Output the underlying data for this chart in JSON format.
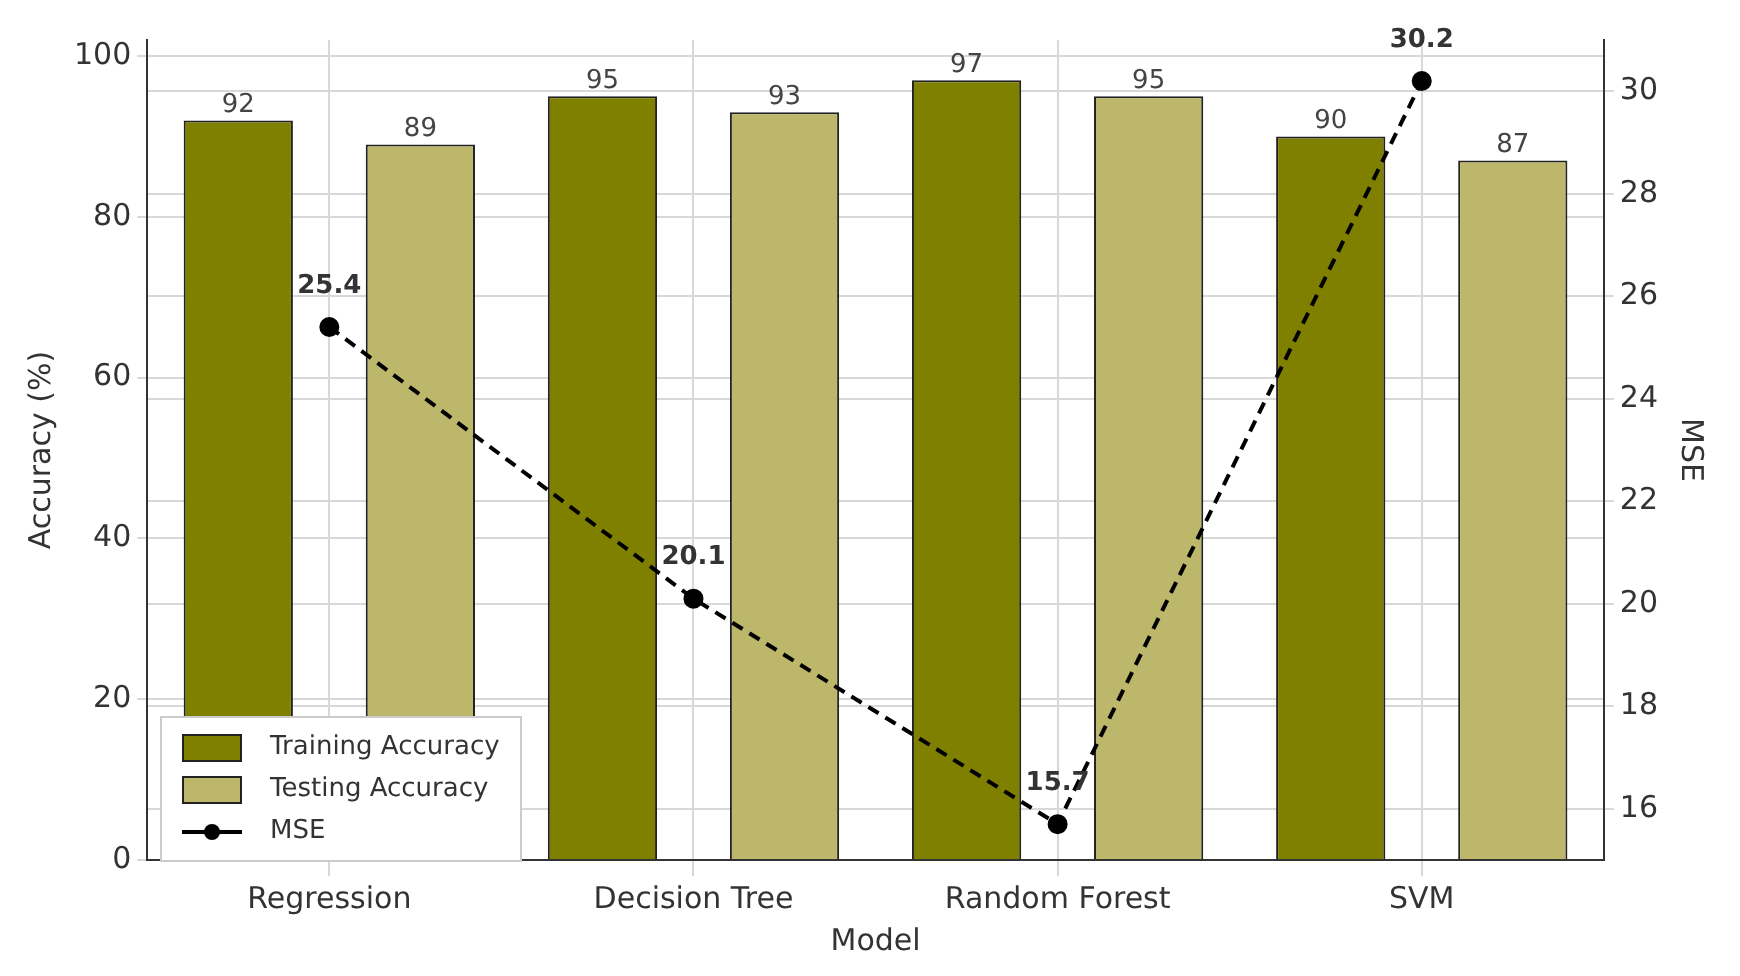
{
  "chart_data": {
    "type": "bar",
    "xlabel": "Model",
    "ylabel": "Accuracy (%)",
    "y2label": "MSE",
    "categories": [
      "Regression",
      "Decision Tree",
      "Random Forest",
      "SVM"
    ],
    "series": [
      {
        "name": "Training Accuracy",
        "color": "#808000",
        "values": [
          92,
          95,
          97,
          90
        ]
      },
      {
        "name": "Testing Accuracy",
        "color": "#bdb76b",
        "values": [
          89,
          93,
          95,
          87
        ]
      },
      {
        "name": "MSE",
        "type": "line",
        "axis": "y2",
        "color": "#000000",
        "values": [
          25.4,
          20.1,
          15.7,
          30.2
        ]
      }
    ],
    "ylim": [
      0,
      102
    ],
    "yticks": [
      0,
      20,
      40,
      60,
      80,
      100
    ],
    "y2lim": [
      15,
      31
    ],
    "y2ticks": [
      16,
      18,
      20,
      22,
      24,
      26,
      28,
      30
    ],
    "data_labels": true,
    "grid": true,
    "legend": "bottom left",
    "marker": "circle",
    "line_style": "dashed"
  }
}
